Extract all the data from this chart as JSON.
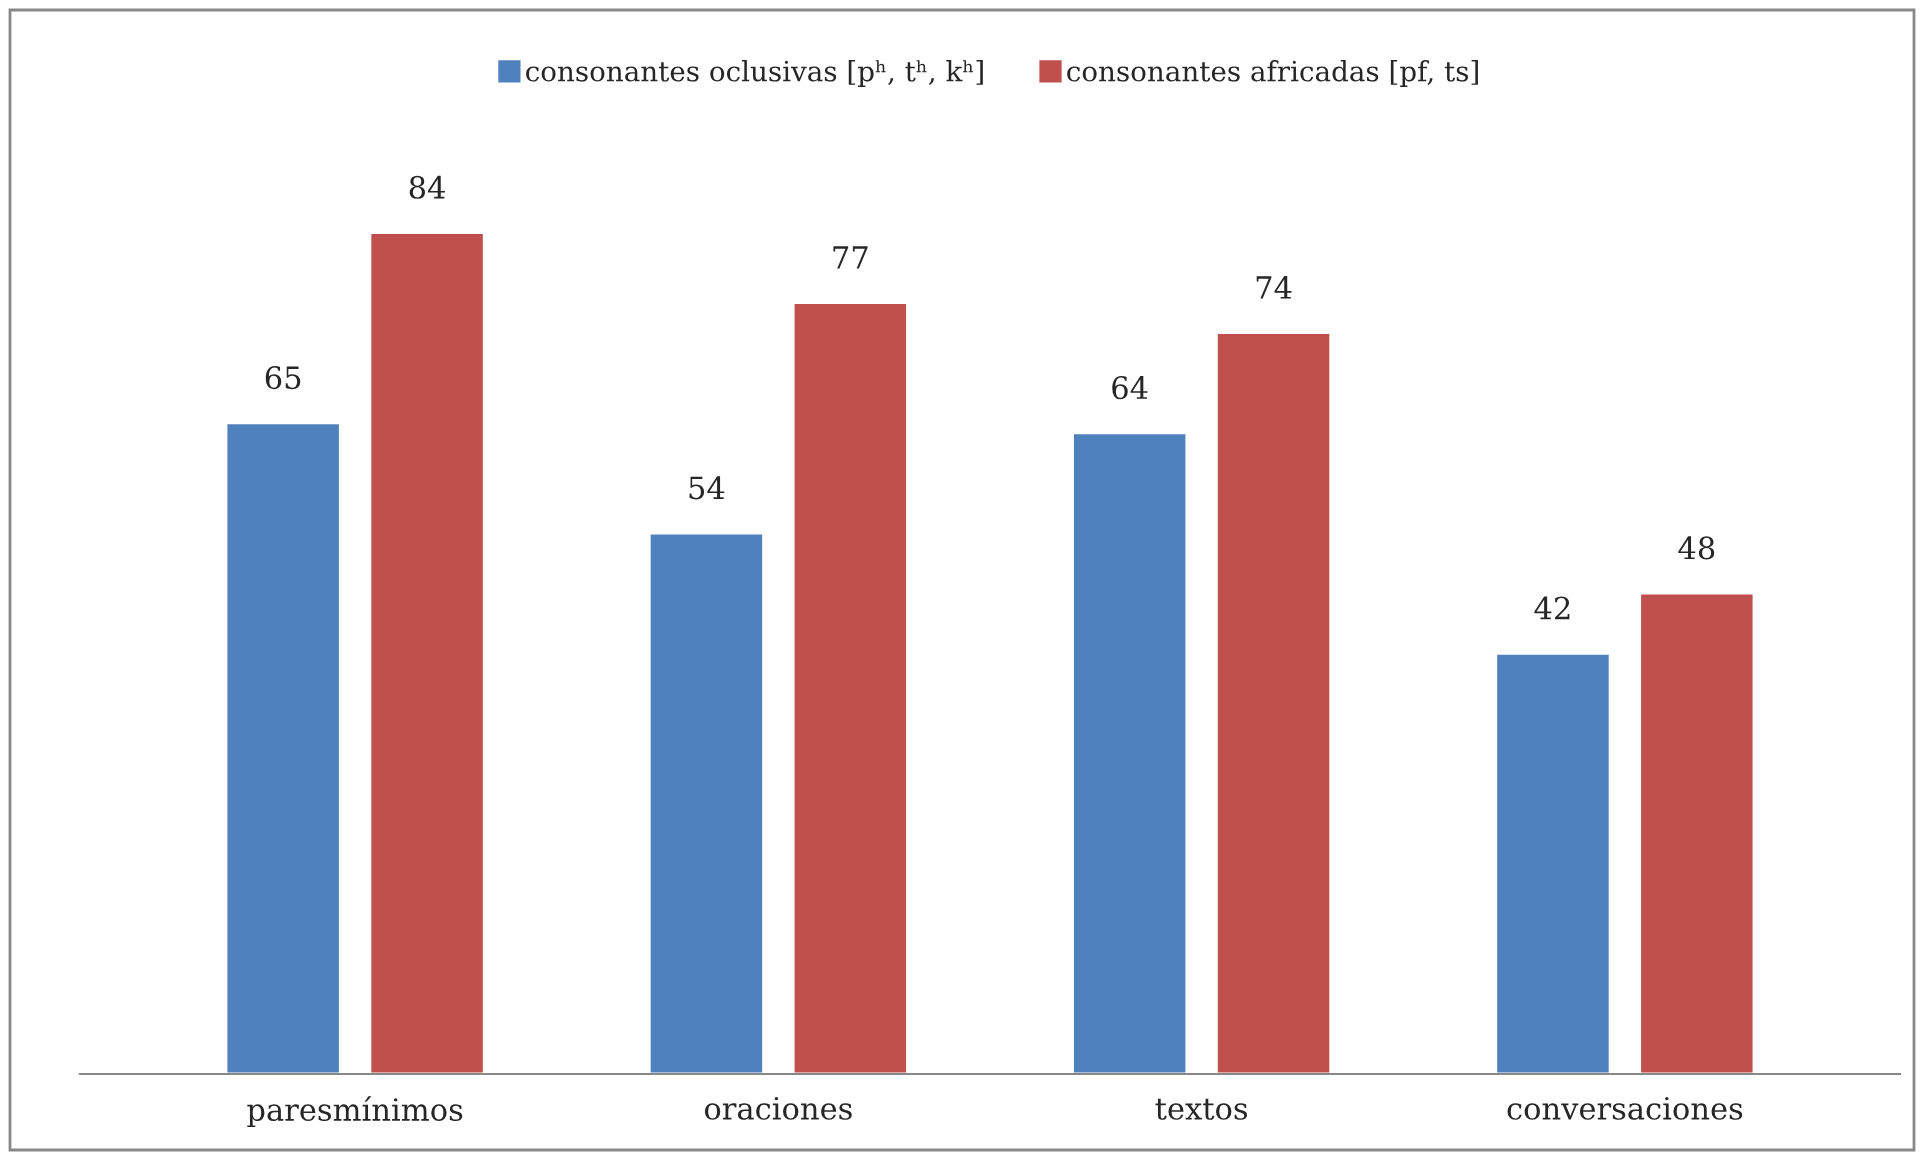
{
  "chart_data": {
    "type": "bar",
    "categories": [
      "paresmínimos",
      "oraciones",
      "textos",
      "conversaciones"
    ],
    "series": [
      {
        "name": "consonantes oclusivas [pʰ, tʰ, kʰ]",
        "color": "#4f81bd",
        "values": [
          65,
          54,
          64,
          42
        ]
      },
      {
        "name": "consonantes africadas [pf, ts]",
        "color": "#c0504d",
        "values": [
          84,
          77,
          74,
          48
        ]
      }
    ],
    "data_labels": true,
    "legend": "top",
    "grid": false
  }
}
